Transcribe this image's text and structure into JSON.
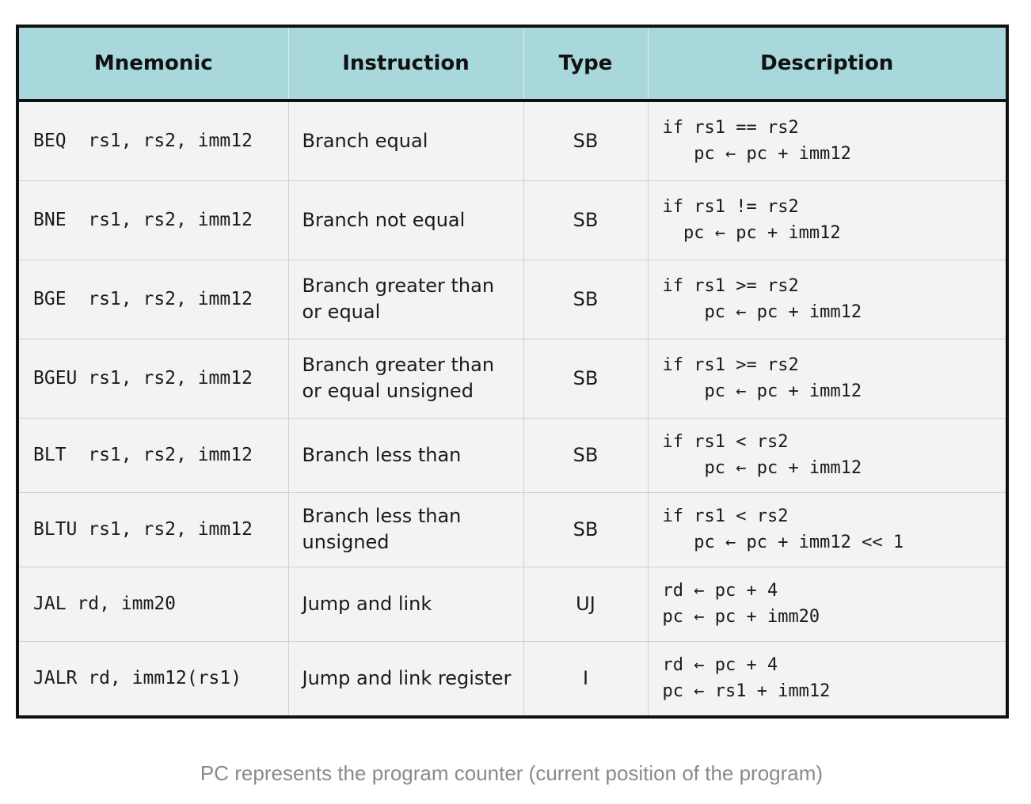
{
  "table": {
    "headers": [
      "Mnemonic",
      "Instruction",
      "Type",
      "Description"
    ],
    "rows": [
      {
        "mnemonic": "BEQ  rs1, rs2, imm12",
        "instruction": "Branch equal",
        "type": "SB",
        "desc1": "if rs1 == rs2",
        "desc2": "   pc ← pc + imm12"
      },
      {
        "mnemonic": "BNE  rs1, rs2, imm12",
        "instruction": "Branch not equal",
        "type": "SB",
        "desc1": "if rs1 != rs2",
        "desc2": "  pc ← pc + imm12"
      },
      {
        "mnemonic": "BGE  rs1, rs2, imm12",
        "instruction": "Branch greater than or equal",
        "type": "SB",
        "desc1": "if rs1 >= rs2",
        "desc2": "    pc ← pc + imm12"
      },
      {
        "mnemonic": "BGEU rs1, rs2, imm12",
        "instruction": "Branch greater than or equal unsigned",
        "type": "SB",
        "desc1": "if rs1 >= rs2",
        "desc2": "    pc ← pc + imm12"
      },
      {
        "mnemonic": "BLT  rs1, rs2, imm12",
        "instruction": "Branch less than",
        "type": "SB",
        "desc1": "if rs1 < rs2",
        "desc2": "    pc ← pc + imm12"
      },
      {
        "mnemonic": "BLTU rs1, rs2, imm12",
        "instruction": "Branch less than unsigned",
        "type": "SB",
        "desc1": "if rs1 < rs2",
        "desc2": "   pc ← pc + imm12 << 1"
      },
      {
        "mnemonic": "JAL rd, imm20",
        "instruction": "Jump and link",
        "type": "UJ",
        "desc1": "rd ← pc + 4",
        "desc2": "pc ← pc + imm20"
      },
      {
        "mnemonic": "JALR rd, imm12(rs1)",
        "instruction": "Jump and link register",
        "type": "I",
        "desc1": "rd ← pc + 4",
        "desc2": "pc ← rs1 + imm12"
      }
    ]
  },
  "caption": "PC represents the program counter (current position of the program)"
}
